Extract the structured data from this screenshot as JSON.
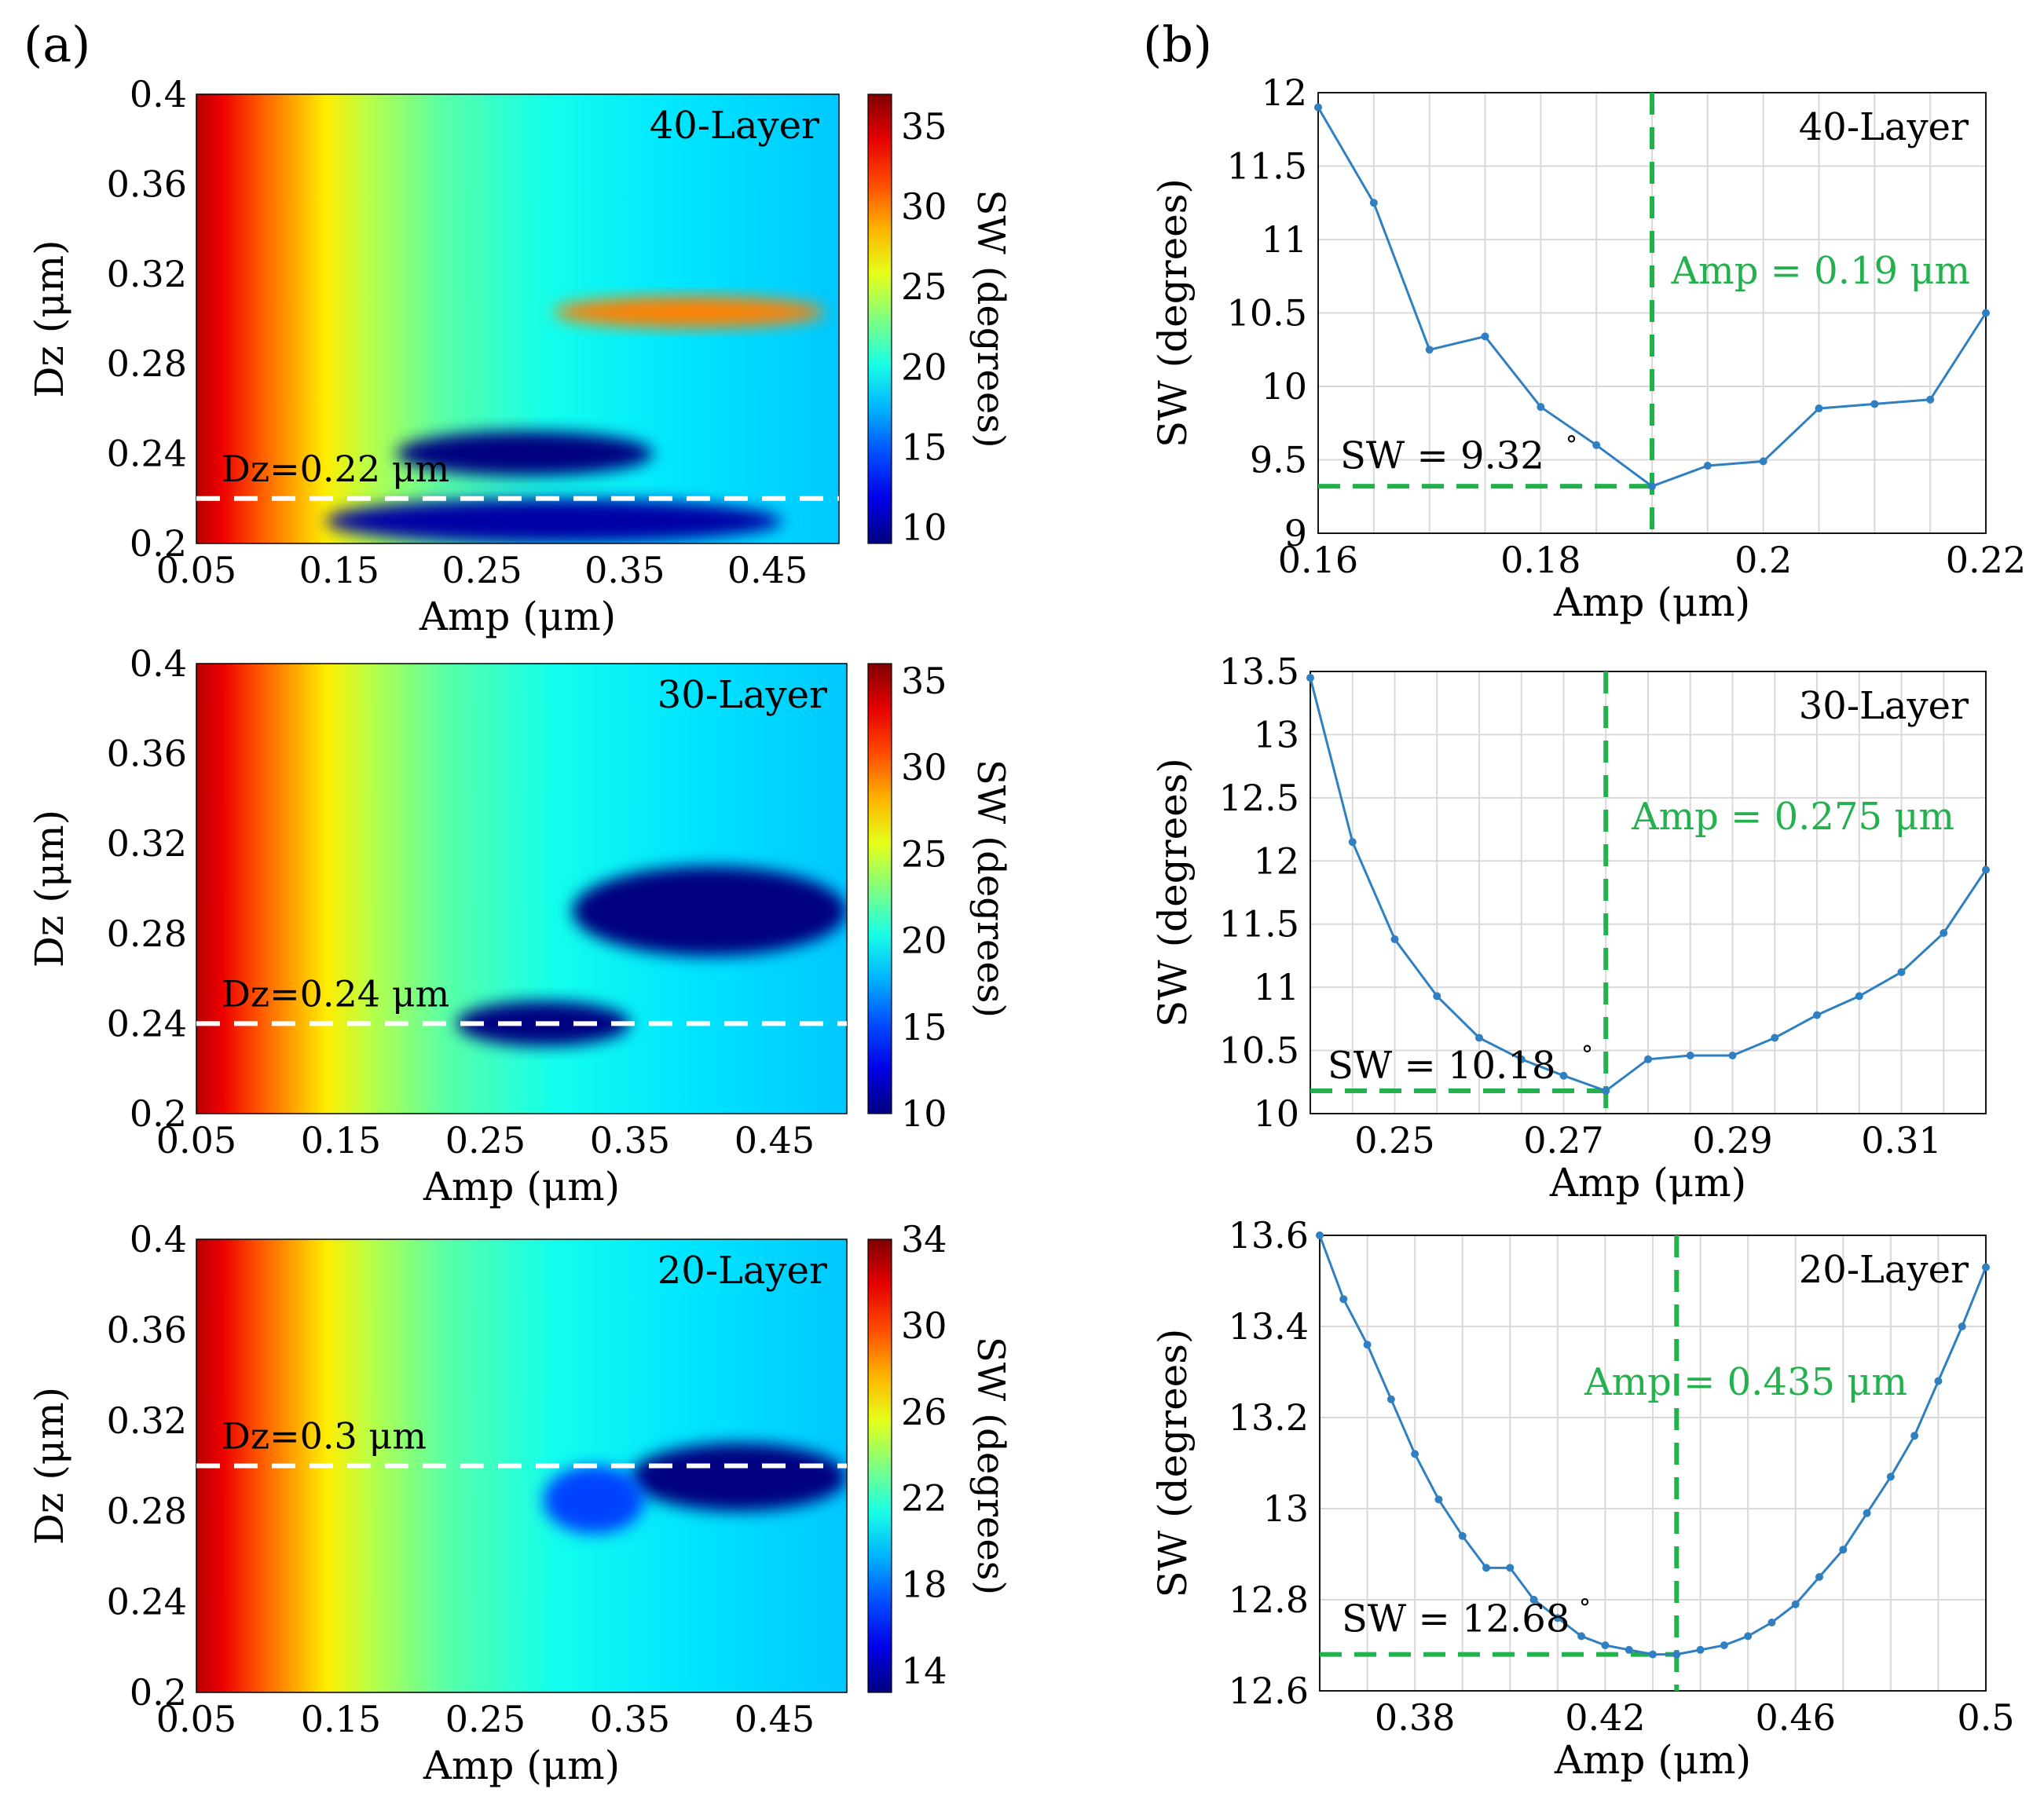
{
  "figure": {
    "label_a": "(a)",
    "label_b": "(b)"
  },
  "colors": {
    "line": "#2f7fc1",
    "marker": "#2f7fc1",
    "green_dash": "#22b14c",
    "green_text": "#22b14c",
    "white_dash": "#ffffff",
    "grid": "#d9d9d9",
    "axis": "#000000"
  },
  "chart_data": [
    {
      "id": "a1",
      "type": "heatmap",
      "title": "40-Layer",
      "xlabel": "Amp (μm)",
      "ylabel": "Dz (μm)",
      "xlim": [
        0.05,
        0.5
      ],
      "ylim": [
        0.2,
        0.4
      ],
      "xticks": [
        "0.05",
        "0.15",
        "0.25",
        "0.35",
        "0.45"
      ],
      "yticks": [
        "0.4",
        "0.36",
        "0.32",
        "0.28",
        "0.24",
        "0.2"
      ],
      "colorbar": {
        "label": "SW (degrees)",
        "range": [
          9,
          37
        ],
        "ticks": [
          "35",
          "30",
          "25",
          "20",
          "15",
          "10"
        ]
      },
      "highlight_dz": 0.22,
      "annotation": "Dz=0.22 μm",
      "features": [
        {
          "desc": "low-SW region",
          "amp": [
            0.14,
            0.46
          ],
          "dz": [
            0.2,
            0.22
          ],
          "sw": 10
        },
        {
          "desc": "low-SW region",
          "amp": [
            0.19,
            0.37
          ],
          "dz": [
            0.23,
            0.25
          ],
          "sw": 9
        },
        {
          "desc": "high-SW band",
          "amp": [
            0.3,
            0.49
          ],
          "dz": [
            0.296,
            0.31
          ],
          "sw": 30
        }
      ]
    },
    {
      "id": "a2",
      "type": "heatmap",
      "title": "30-Layer",
      "xlabel": "Amp (μm)",
      "ylabel": "Dz (μm)",
      "xlim": [
        0.05,
        0.5
      ],
      "ylim": [
        0.2,
        0.4
      ],
      "xticks": [
        "0.05",
        "0.15",
        "0.25",
        "0.35",
        "0.45"
      ],
      "yticks": [
        "0.4",
        "0.36",
        "0.32",
        "0.28",
        "0.24",
        "0.2"
      ],
      "colorbar": {
        "label": "SW (degrees)",
        "range": [
          10,
          36
        ],
        "ticks": [
          "35",
          "30",
          "25",
          "20",
          "15",
          "10"
        ]
      },
      "highlight_dz": 0.24,
      "annotation": "Dz=0.24 μm",
      "features": [
        {
          "desc": "low-SW region",
          "amp": [
            0.31,
            0.5
          ],
          "dz": [
            0.27,
            0.31
          ],
          "sw": 10
        },
        {
          "desc": "low-SW region",
          "amp": [
            0.23,
            0.35
          ],
          "dz": [
            0.23,
            0.25
          ],
          "sw": 10
        }
      ]
    },
    {
      "id": "a3",
      "type": "heatmap",
      "title": "20-Layer",
      "xlabel": "Amp (μm)",
      "ylabel": "Dz (μm)",
      "xlim": [
        0.05,
        0.5
      ],
      "ylim": [
        0.2,
        0.4
      ],
      "xticks": [
        "0.05",
        "0.15",
        "0.25",
        "0.35",
        "0.45"
      ],
      "yticks": [
        "0.4",
        "0.36",
        "0.32",
        "0.28",
        "0.24",
        "0.2"
      ],
      "colorbar": {
        "label": "SW (degrees)",
        "range": [
          13,
          34
        ],
        "ticks": [
          "34",
          "30",
          "26",
          "22",
          "18",
          "14"
        ]
      },
      "highlight_dz": 0.3,
      "annotation": "Dz=0.3 μm",
      "features": [
        {
          "desc": "low-SW region",
          "amp": [
            0.35,
            0.5
          ],
          "dz": [
            0.28,
            0.31
          ],
          "sw": 13
        },
        {
          "desc": "mid-low region",
          "amp": [
            0.29,
            0.36
          ],
          "dz": [
            0.27,
            0.3
          ],
          "sw": 17
        }
      ]
    },
    {
      "id": "b1",
      "type": "line",
      "title": "40-Layer",
      "xlabel": "Amp (μm)",
      "ylabel": "SW (degrees)",
      "xlim": [
        0.16,
        0.22
      ],
      "ylim": [
        9,
        12
      ],
      "xticks": [
        "0.16",
        "0.18",
        "0.2",
        "0.22"
      ],
      "yticks": [
        "12",
        "11.5",
        "11",
        "10.5",
        "10",
        "9.5",
        "9"
      ],
      "x": [
        0.16,
        0.165,
        0.17,
        0.175,
        0.18,
        0.185,
        0.19,
        0.195,
        0.2,
        0.205,
        0.21,
        0.215,
        0.22
      ],
      "y": [
        11.9,
        11.25,
        10.25,
        10.34,
        9.86,
        9.6,
        9.32,
        9.46,
        9.49,
        9.85,
        9.88,
        9.91,
        10.5
      ],
      "min_amp": 0.19,
      "min_sw": 9.32,
      "amp_label": "Amp = 0.19 μm",
      "sw_label": "SW = 9.32",
      "deg": "°"
    },
    {
      "id": "b2",
      "type": "line",
      "title": "30-Layer",
      "xlabel": "Amp (μm)",
      "ylabel": "SW (degrees)",
      "xlim": [
        0.24,
        0.32
      ],
      "ylim": [
        10,
        13.5
      ],
      "xticks": [
        "0.25",
        "0.27",
        "0.29",
        "0.31"
      ],
      "yticks": [
        "13.5",
        "13",
        "12.5",
        "12",
        "11.5",
        "11",
        "10.5",
        "10"
      ],
      "x": [
        0.24,
        0.245,
        0.25,
        0.255,
        0.26,
        0.265,
        0.27,
        0.275,
        0.28,
        0.285,
        0.29,
        0.295,
        0.3,
        0.305,
        0.31,
        0.315,
        0.32
      ],
      "y": [
        13.45,
        12.15,
        11.38,
        10.93,
        10.6,
        10.43,
        10.3,
        10.18,
        10.43,
        10.46,
        10.46,
        10.6,
        10.78,
        10.93,
        11.12,
        11.43,
        11.93
      ],
      "min_amp": 0.275,
      "min_sw": 10.18,
      "amp_label": "Amp = 0.275 μm",
      "sw_label": "SW = 10.18",
      "deg": "°"
    },
    {
      "id": "b3",
      "type": "line",
      "title": "20-Layer",
      "xlabel": "Amp (μm)",
      "ylabel": "SW (degrees)",
      "xlim": [
        0.36,
        0.5
      ],
      "ylim": [
        12.6,
        13.6
      ],
      "xticks": [
        "0.38",
        "0.42",
        "0.46",
        "0.5"
      ],
      "yticks": [
        "13.6",
        "13.4",
        "13.2",
        "13",
        "12.8",
        "12.6"
      ],
      "x": [
        0.36,
        0.365,
        0.37,
        0.375,
        0.38,
        0.385,
        0.39,
        0.395,
        0.4,
        0.405,
        0.41,
        0.415,
        0.42,
        0.425,
        0.43,
        0.435,
        0.44,
        0.445,
        0.45,
        0.455,
        0.46,
        0.465,
        0.47,
        0.475,
        0.48,
        0.485,
        0.49,
        0.495,
        0.5
      ],
      "y": [
        13.6,
        13.46,
        13.36,
        13.24,
        13.12,
        13.02,
        12.94,
        12.87,
        12.87,
        12.8,
        12.76,
        12.72,
        12.7,
        12.69,
        12.68,
        12.68,
        12.69,
        12.7,
        12.72,
        12.75,
        12.79,
        12.85,
        12.91,
        12.99,
        13.07,
        13.16,
        13.28,
        13.4,
        13.53
      ],
      "min_amp": 0.435,
      "min_sw": 12.68,
      "amp_label": "Amp = 0.435 μm",
      "sw_label": "SW = 12.68",
      "deg": "°"
    }
  ]
}
